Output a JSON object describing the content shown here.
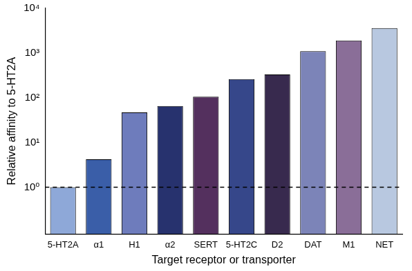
{
  "chart_data": {
    "type": "bar",
    "x_label": "Target receptor or transporter",
    "y_label": "Relative affinity to 5-HT2A",
    "categories": [
      "5-HT2A",
      "α1",
      "H1",
      "α2",
      "SERT",
      "5-HT2C",
      "D2",
      "DAT",
      "M1",
      "NET"
    ],
    "values": [
      1,
      4.2,
      47,
      65,
      105,
      260,
      330,
      1100,
      1900,
      3600
    ],
    "colors": [
      "#8ea8d8",
      "#3a5ea8",
      "#6e7cbc",
      "#27326e",
      "#54305e",
      "#36478a",
      "#382a4e",
      "#7c84b8",
      "#8a6e98",
      "#b8c8e0"
    ],
    "log": "y",
    "grid": false,
    "ylim": [
      0.09,
      10000
    ],
    "yticks": [
      {
        "value": 1,
        "label": "10⁰"
      },
      {
        "value": 10,
        "label": "10¹"
      },
      {
        "value": 100,
        "label": "10²"
      },
      {
        "value": 1000,
        "label": "10³"
      },
      {
        "value": 10000,
        "label": "10⁴"
      }
    ],
    "hline": 1
  }
}
